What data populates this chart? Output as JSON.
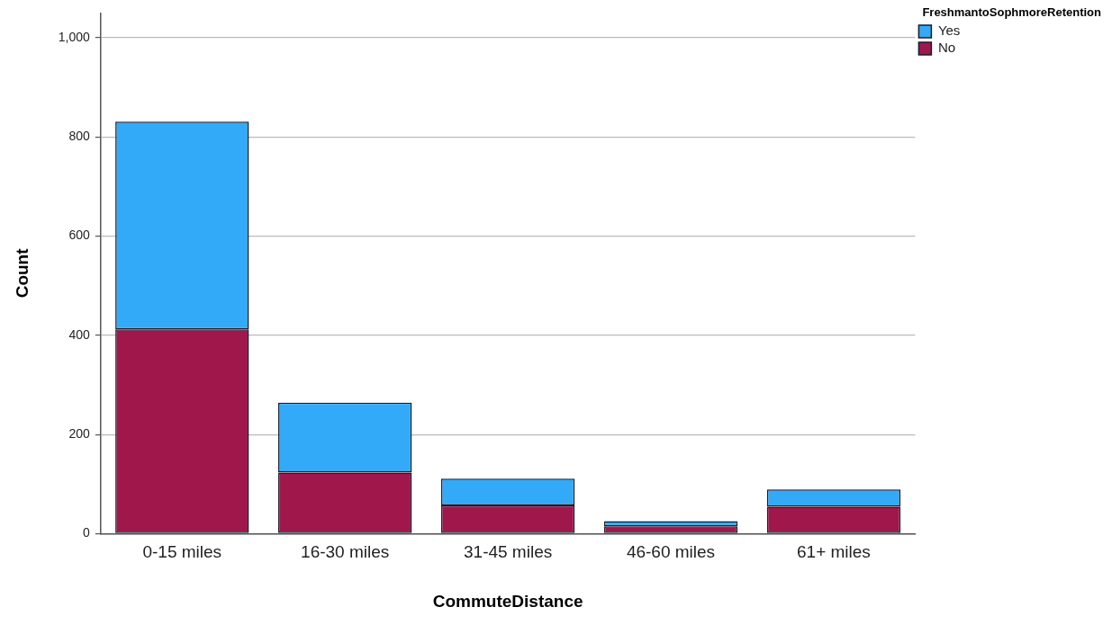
{
  "chart_data": {
    "type": "bar",
    "stacked": true,
    "xlabel": "CommuteDistance",
    "ylabel": "Count",
    "legend_title": "FreshmantoSophmoreRetention",
    "categories": [
      "0-15 miles",
      "16-30 miles",
      "31-45 miles",
      "46-60 miles",
      "61+ miles"
    ],
    "series": [
      {
        "name": "No",
        "color": "#a0174b",
        "values": [
          412,
          123,
          57,
          15,
          54
        ]
      },
      {
        "name": "Yes",
        "color": "#33aaf7",
        "values": [
          419,
          141,
          54,
          10,
          35
        ]
      }
    ],
    "ylim": [
      0,
      1050
    ],
    "yticks": [
      0,
      200,
      400,
      600,
      800,
      {
        "value": 1000,
        "label": "1,000"
      }
    ],
    "grid": "y",
    "legend": "top right"
  }
}
